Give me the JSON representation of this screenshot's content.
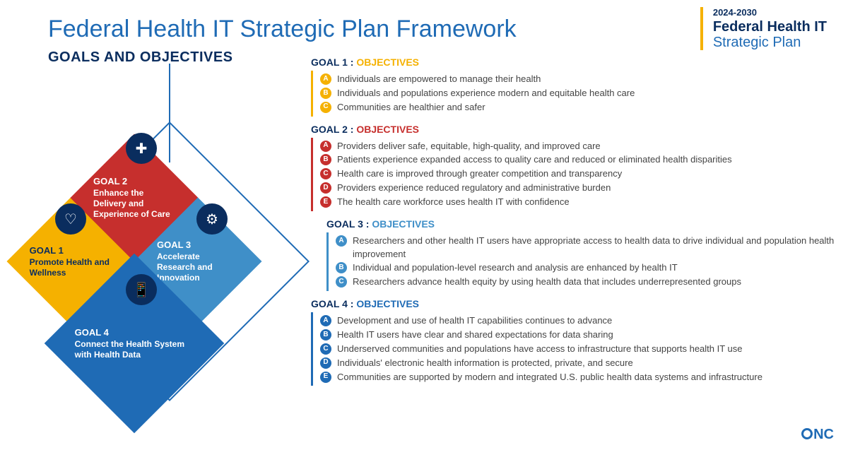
{
  "title": "Federal Health IT Strategic Plan Framework",
  "subtitle": "GOALS AND OBJECTIVES",
  "brand": {
    "years": "2024-2030",
    "line1": "Federal Health IT",
    "line2": "Strategic Plan",
    "accent_color": "#f5b100"
  },
  "logo_text": "NC",
  "colors": {
    "primary_blue": "#1f6bb5",
    "dark_navy": "#0a2d5e",
    "goal1": "#f5b100",
    "goal2": "#c62f2d",
    "goal3": "#3f8fc8",
    "goal4": "#1f6bb5"
  },
  "goals": [
    {
      "id": 1,
      "label": "GOAL 1",
      "title": "Promote Health and Wellness",
      "color": "#f5b100",
      "icon_glyph": "♡",
      "indent": 0,
      "objectives": [
        {
          "letter": "A",
          "text": "Individuals are empowered to manage their health"
        },
        {
          "letter": "B",
          "text": "Individuals and populations experience modern and equitable health care"
        },
        {
          "letter": "C",
          "text": "Communities are healthier and safer"
        }
      ]
    },
    {
      "id": 2,
      "label": "GOAL 2",
      "title": "Enhance the Delivery and Experience of Care",
      "color": "#c62f2d",
      "icon_glyph": "✚",
      "indent": 0,
      "objectives": [
        {
          "letter": "A",
          "text": "Providers deliver safe, equitable, high-quality, and improved care"
        },
        {
          "letter": "B",
          "text": "Patients experience expanded access to quality care and reduced or eliminated health disparities"
        },
        {
          "letter": "C",
          "text": "Health care is improved through greater competition and transparency"
        },
        {
          "letter": "D",
          "text": "Providers experience reduced regulatory and administrative burden"
        },
        {
          "letter": "E",
          "text": "The health care workforce uses health IT with confidence"
        }
      ]
    },
    {
      "id": 3,
      "label": "GOAL 3",
      "title": "Accelerate Research and Innovation",
      "color": "#3f8fc8",
      "icon_glyph": "⚙",
      "indent": 1,
      "objectives": [
        {
          "letter": "A",
          "text": "Researchers and other health IT users have appropriate access to health data to drive individual and population health improvement"
        },
        {
          "letter": "B",
          "text": "Individual and population-level research and analysis are enhanced by health IT"
        },
        {
          "letter": "C",
          "text": "Researchers advance health equity by using health data that includes underrepresented groups"
        }
      ]
    },
    {
      "id": 4,
      "label": "GOAL 4",
      "title": "Connect the Health System with Health Data",
      "color": "#1f6bb5",
      "icon_glyph": "📱",
      "indent": 0,
      "objectives": [
        {
          "letter": "A",
          "text": "Development and use of health IT capabilities continues to advance"
        },
        {
          "letter": "B",
          "text": "Health IT users have clear and shared expectations for data sharing"
        },
        {
          "letter": "C",
          "text": "Underserved communities and populations have access to infrastructure that supports health IT use"
        },
        {
          "letter": "D",
          "text": "Individuals' electronic health information is protected, private, and secure"
        },
        {
          "letter": "E",
          "text": "Communities are supported by modern and integrated U.S. public health data systems and infrastructure"
        }
      ]
    }
  ],
  "objectives_word": "OBJECTIVES"
}
